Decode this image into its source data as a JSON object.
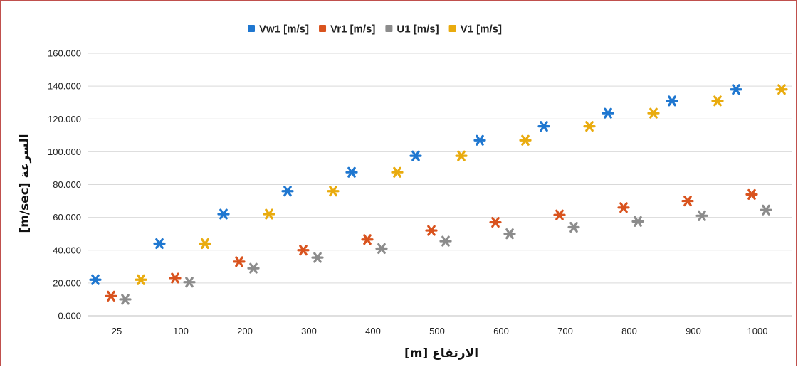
{
  "chart_data": {
    "type": "scatter",
    "xlabel": "الارتفاع [m]",
    "ylabel": "السرعة [m/sec]",
    "categories": [
      "25",
      "100",
      "200",
      "300",
      "400",
      "500",
      "600",
      "700",
      "800",
      "900",
      "1000"
    ],
    "ylim": [
      0,
      160
    ],
    "yticks": [
      "0.000",
      "20.000",
      "40.000",
      "60.000",
      "80.000",
      "100.000",
      "120.000",
      "140.000",
      "160.000"
    ],
    "grid": true,
    "legend_position": "top",
    "marker": "asterisk",
    "series": [
      {
        "name": "Vw1 [m/s]",
        "color": "#1f77d0",
        "values": [
          22,
          44,
          62,
          76,
          87.5,
          97.5,
          107,
          115.5,
          123.5,
          131,
          138
        ]
      },
      {
        "name": "Vr1 [m/s]",
        "color": "#d9531e",
        "values": [
          12,
          23,
          33,
          40,
          46.5,
          52,
          57,
          61.5,
          66,
          70,
          74
        ]
      },
      {
        "name": "U1 [m/s]",
        "color": "#8c8c8c",
        "values": [
          10,
          20.5,
          29,
          35.5,
          41,
          45.5,
          50,
          54,
          57.5,
          61,
          64.5
        ]
      },
      {
        "name": "V1 [m/s]",
        "color": "#e9ab0e",
        "values": [
          22,
          44,
          62,
          76,
          87.5,
          97.5,
          107,
          115.5,
          123.5,
          131,
          138
        ]
      }
    ]
  }
}
